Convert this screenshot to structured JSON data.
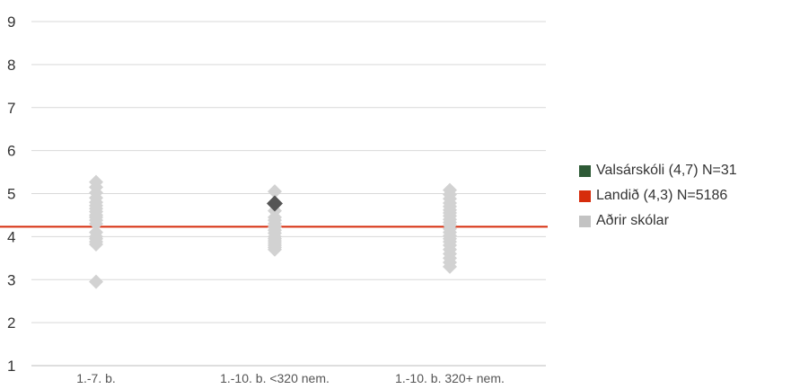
{
  "chart_data": {
    "type": "scatter",
    "categories": [
      "1.-7. b.",
      "1.-10. b. <320 nem.",
      "1.-10. b. 320+ nem."
    ],
    "ylim": [
      1,
      9
    ],
    "yticks": [
      1,
      2,
      3,
      4,
      5,
      6,
      7,
      8,
      9
    ],
    "grid": true,
    "legend_position": "right",
    "reference_line": {
      "value": 4.23,
      "color": "#d62c0c"
    },
    "series": [
      {
        "name": "Valsárskóli (4,7) N=31",
        "color": "#2e5a36",
        "marker_color": "#555555",
        "points": [
          {
            "category": "1.-10. b. <320 nem.",
            "value": 4.77
          }
        ]
      },
      {
        "name": "Landið (4,3) N=5186",
        "color": "#d62c0c",
        "points": []
      },
      {
        "name": "Aðrir skólar",
        "color": "#c3c3c3",
        "marker_color": "#d2d2d2",
        "points": [
          {
            "category": "1.-7. b.",
            "value": 5.27
          },
          {
            "category": "1.-7. b.",
            "value": 5.15
          },
          {
            "category": "1.-7. b.",
            "value": 5.02
          },
          {
            "category": "1.-7. b.",
            "value": 4.9
          },
          {
            "category": "1.-7. b.",
            "value": 4.8
          },
          {
            "category": "1.-7. b.",
            "value": 4.72
          },
          {
            "category": "1.-7. b.",
            "value": 4.65
          },
          {
            "category": "1.-7. b.",
            "value": 4.58
          },
          {
            "category": "1.-7. b.",
            "value": 4.5
          },
          {
            "category": "1.-7. b.",
            "value": 4.45
          },
          {
            "category": "1.-7. b.",
            "value": 4.38
          },
          {
            "category": "1.-7. b.",
            "value": 4.3
          },
          {
            "category": "1.-7. b.",
            "value": 4.1
          },
          {
            "category": "1.-7. b.",
            "value": 4.0
          },
          {
            "category": "1.-7. b.",
            "value": 3.95
          },
          {
            "category": "1.-7. b.",
            "value": 3.88
          },
          {
            "category": "1.-7. b.",
            "value": 3.82
          },
          {
            "category": "1.-7. b.",
            "value": 2.95
          },
          {
            "category": "1.-10. b. <320 nem.",
            "value": 5.05
          },
          {
            "category": "1.-10. b. <320 nem.",
            "value": 4.6
          },
          {
            "category": "1.-10. b. <320 nem.",
            "value": 4.45
          },
          {
            "category": "1.-10. b. <320 nem.",
            "value": 4.38
          },
          {
            "category": "1.-10. b. <320 nem.",
            "value": 4.3
          },
          {
            "category": "1.-10. b. <320 nem.",
            "value": 4.22
          },
          {
            "category": "1.-10. b. <320 nem.",
            "value": 4.15
          },
          {
            "category": "1.-10. b. <320 nem.",
            "value": 4.08
          },
          {
            "category": "1.-10. b. <320 nem.",
            "value": 4.0
          },
          {
            "category": "1.-10. b. <320 nem.",
            "value": 3.95
          },
          {
            "category": "1.-10. b. <320 nem.",
            "value": 3.9
          },
          {
            "category": "1.-10. b. <320 nem.",
            "value": 3.85
          },
          {
            "category": "1.-10. b. <320 nem.",
            "value": 3.8
          },
          {
            "category": "1.-10. b. <320 nem.",
            "value": 3.75
          },
          {
            "category": "1.-10. b. <320 nem.",
            "value": 3.7
          },
          {
            "category": "1.-10. b. 320+ nem.",
            "value": 5.08
          },
          {
            "category": "1.-10. b. 320+ nem.",
            "value": 4.98
          },
          {
            "category": "1.-10. b. 320+ nem.",
            "value": 4.88
          },
          {
            "category": "1.-10. b. 320+ nem.",
            "value": 4.78
          },
          {
            "category": "1.-10. b. 320+ nem.",
            "value": 4.7
          },
          {
            "category": "1.-10. b. 320+ nem.",
            "value": 4.62
          },
          {
            "category": "1.-10. b. 320+ nem.",
            "value": 4.55
          },
          {
            "category": "1.-10. b. 320+ nem.",
            "value": 4.48
          },
          {
            "category": "1.-10. b. 320+ nem.",
            "value": 4.4
          },
          {
            "category": "1.-10. b. 320+ nem.",
            "value": 4.33
          },
          {
            "category": "1.-10. b. 320+ nem.",
            "value": 4.26
          },
          {
            "category": "1.-10. b. 320+ nem.",
            "value": 4.18
          },
          {
            "category": "1.-10. b. 320+ nem.",
            "value": 4.1
          },
          {
            "category": "1.-10. b. 320+ nem.",
            "value": 4.02
          },
          {
            "category": "1.-10. b. 320+ nem.",
            "value": 3.95
          },
          {
            "category": "1.-10. b. 320+ nem.",
            "value": 3.88
          },
          {
            "category": "1.-10. b. 320+ nem.",
            "value": 3.8
          },
          {
            "category": "1.-10. b. 320+ nem.",
            "value": 3.7
          },
          {
            "category": "1.-10. b. 320+ nem.",
            "value": 3.6
          },
          {
            "category": "1.-10. b. 320+ nem.",
            "value": 3.5
          },
          {
            "category": "1.-10. b. 320+ nem.",
            "value": 3.4
          },
          {
            "category": "1.-10. b. 320+ nem.",
            "value": 3.3
          }
        ]
      }
    ]
  }
}
